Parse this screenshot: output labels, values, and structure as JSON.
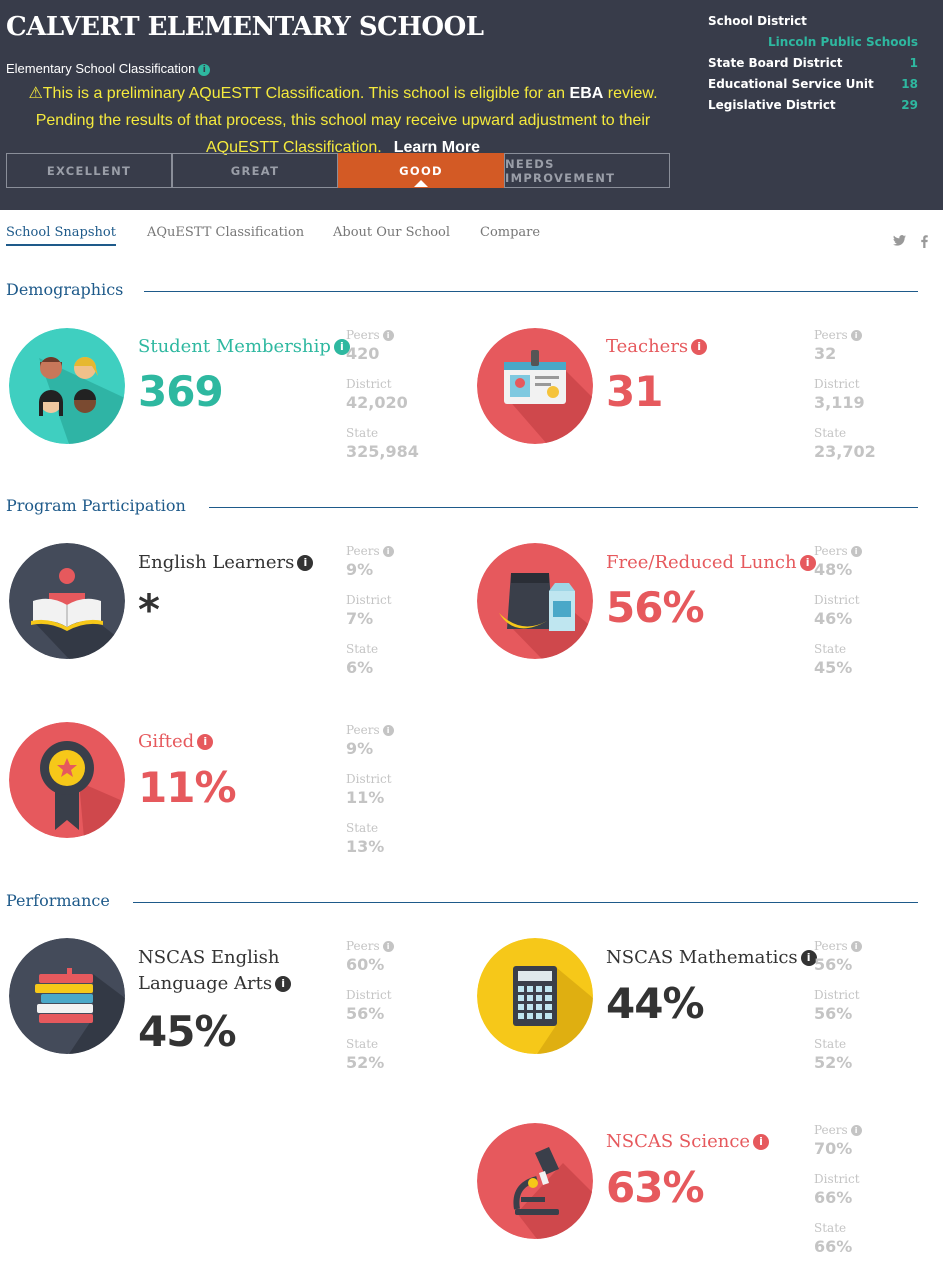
{
  "header": {
    "school_name": "CALVERT ELEMENTARY SCHOOL",
    "classification_label": "Elementary School Classification",
    "notice": {
      "part1": "This is a preliminary AQuESTT Classification. This school is eligible for an ",
      "bold": "EBA",
      "part2": " review. Pending the results of that process, this school may receive upward adjustment to their AQuESTT Classification.",
      "learn_more": "Learn More"
    },
    "ratings": [
      "EXCELLENT",
      "GREAT",
      "GOOD",
      "NEEDS IMPROVEMENT"
    ],
    "active_rating": "GOOD",
    "district": {
      "school_district_label": "School District",
      "school_district_value": "Lincoln Public Schools",
      "rows": [
        {
          "label": "State Board District",
          "value": "1"
        },
        {
          "label": "Educational Service Unit",
          "value": "18"
        },
        {
          "label": "Legislative District",
          "value": "29"
        }
      ]
    }
  },
  "tabs": [
    "School Snapshot",
    "AQuESTT Classification",
    "About Our School",
    "Compare"
  ],
  "active_tab": "School Snapshot",
  "social": {
    "twitter": "twitter-icon",
    "facebook": "facebook-icon"
  },
  "sections": {
    "demographics": "Demographics",
    "program": "Program Participation",
    "performance": "Performance"
  },
  "comparison_labels": {
    "peers": "Peers",
    "district": "District",
    "state": "State"
  },
  "metrics": {
    "student_membership": {
      "title": "Student Membership",
      "value": "369",
      "peers": "420",
      "district": "42,020",
      "state": "325,984"
    },
    "teachers": {
      "title": "Teachers",
      "value": "31",
      "peers": "32",
      "district": "3,119",
      "state": "23,702"
    },
    "english_learners": {
      "title": "English Learners",
      "value": "*",
      "peers": "9%",
      "district": "7%",
      "state": "6%"
    },
    "free_reduced_lunch": {
      "title": "Free/Reduced Lunch",
      "value": "56%",
      "peers": "48%",
      "district": "46%",
      "state": "45%"
    },
    "gifted": {
      "title": "Gifted",
      "value": "11%",
      "peers": "9%",
      "district": "11%",
      "state": "13%"
    },
    "nscas_ela": {
      "title_line1": "NSCAS English",
      "title_line2": "Language Arts",
      "value": "45%",
      "peers": "60%",
      "district": "56%",
      "state": "52%"
    },
    "nscas_math": {
      "title": "NSCAS Mathematics",
      "value": "44%",
      "peers": "56%",
      "district": "56%",
      "state": "52%"
    },
    "nscas_science": {
      "title": "NSCAS Science",
      "value": "63%",
      "peers": "70%",
      "district": "66%",
      "state": "66%"
    }
  },
  "colors": {
    "teal": "#2eb8a0",
    "coral": "#e6595d",
    "dark": "#333333",
    "header_bg": "#383c4a",
    "active_rating": "#d35a25",
    "notice": "#f5ea3d",
    "yellow_icon": "#f6c819"
  }
}
